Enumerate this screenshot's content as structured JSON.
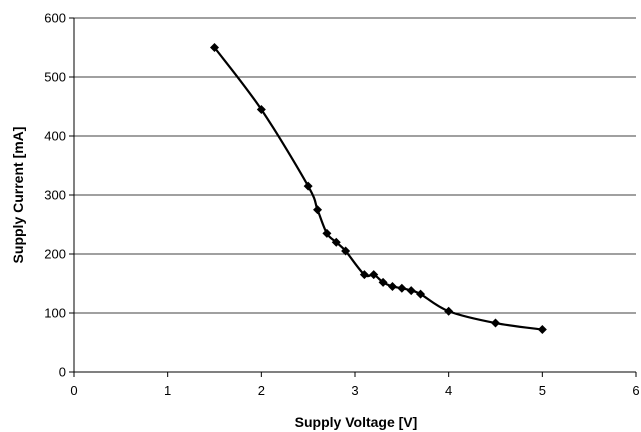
{
  "chart_data": {
    "type": "line",
    "xlabel": "Supply Voltage [V]",
    "ylabel": "Supply Current [mA]",
    "xlim": [
      0,
      6
    ],
    "ylim": [
      0,
      600
    ],
    "x_ticks": [
      0,
      1,
      2,
      3,
      4,
      5,
      6
    ],
    "y_ticks": [
      0,
      100,
      200,
      300,
      400,
      500,
      600
    ],
    "grid": "horizontal",
    "legend": "none",
    "marker": "diamond",
    "series": [
      {
        "color": "#000000",
        "x": [
          1.5,
          2.0,
          2.5,
          2.6,
          2.7,
          2.8,
          2.9,
          3.1,
          3.2,
          3.3,
          3.4,
          3.5,
          3.6,
          3.7,
          4.0,
          4.5,
          5.0
        ],
        "y": [
          550,
          445,
          315,
          275,
          235,
          220,
          205,
          165,
          165,
          152,
          145,
          142,
          138,
          132,
          103,
          83,
          72
        ]
      }
    ]
  }
}
